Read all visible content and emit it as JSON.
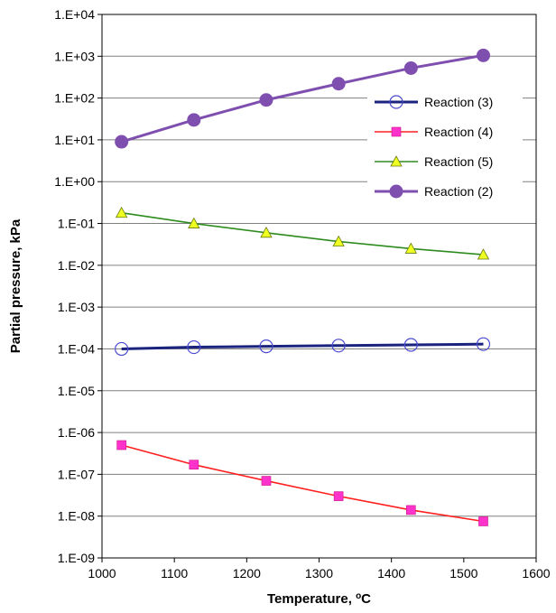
{
  "chart_data": {
    "type": "line",
    "title": "",
    "xlabel": "Temperature, ",
    "xlabel_unit_sup": "o",
    "xlabel_unit": "C",
    "ylabel": "Partial pressure, kPa",
    "x": [
      1027,
      1127,
      1227,
      1327,
      1427,
      1527
    ],
    "xlim": [
      1000,
      1600
    ],
    "xticks": [
      "1000",
      "1100",
      "1200",
      "1300",
      "1400",
      "1500",
      "1600"
    ],
    "ylim": [
      1e-09,
      10000.0
    ],
    "yscale": "log",
    "yticks": [
      "1.E-09",
      "1.E-08",
      "1.E-07",
      "1.E-06",
      "1.E-05",
      "1.E-04",
      "1.E-03",
      "1.E-02",
      "1.E-01",
      "1.E+00",
      "1.E+01",
      "1.E+02",
      "1.E+03",
      "1.E+04"
    ],
    "grid": "horizontal",
    "legend_position": "right",
    "series": [
      {
        "name": "Reaction (3)",
        "color": "#1a237e",
        "marker": "open-circle",
        "values": [
          0.0001,
          0.00011,
          0.000115,
          0.00012,
          0.000125,
          0.00013
        ]
      },
      {
        "name": "Reaction (4)",
        "color": "#ff2020",
        "marker": "square",
        "marker_color": "#ff33cc",
        "values": [
          5e-07,
          1.7e-07,
          7e-08,
          3e-08,
          1.4e-08,
          7.5e-09
        ]
      },
      {
        "name": "Reaction (5)",
        "color": "#2e8b1e",
        "marker": "triangle",
        "marker_color": "#eeff22",
        "values": [
          0.18,
          0.1,
          0.06,
          0.037,
          0.025,
          0.018
        ]
      },
      {
        "name": "Reaction (2)",
        "color": "#7f4fb0",
        "marker": "filled-circle",
        "values": [
          9,
          30,
          90,
          220,
          520,
          1050
        ]
      }
    ]
  }
}
